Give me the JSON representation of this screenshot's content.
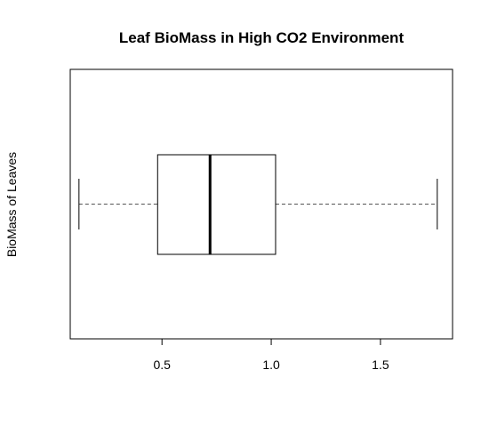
{
  "chart_data": {
    "type": "boxplot",
    "orientation": "horizontal",
    "title": "Leaf BioMass in High CO2 Environment",
    "xlabel": "",
    "ylabel": "BioMass of Leaves",
    "xlim": [
      0.08,
      1.83
    ],
    "x_ticks": [
      0.5,
      1.0,
      1.5
    ],
    "x_tick_labels": [
      "0.5",
      "1.0",
      "1.5"
    ],
    "grid": false,
    "legend": "none",
    "box": {
      "whisker_low": 0.12,
      "q1": 0.48,
      "median": 0.72,
      "q3": 1.02,
      "whisker_high": 1.76
    },
    "colors": {
      "box_fill": "#ffffff",
      "line": "#000000",
      "whisker_line": "#555555"
    }
  }
}
